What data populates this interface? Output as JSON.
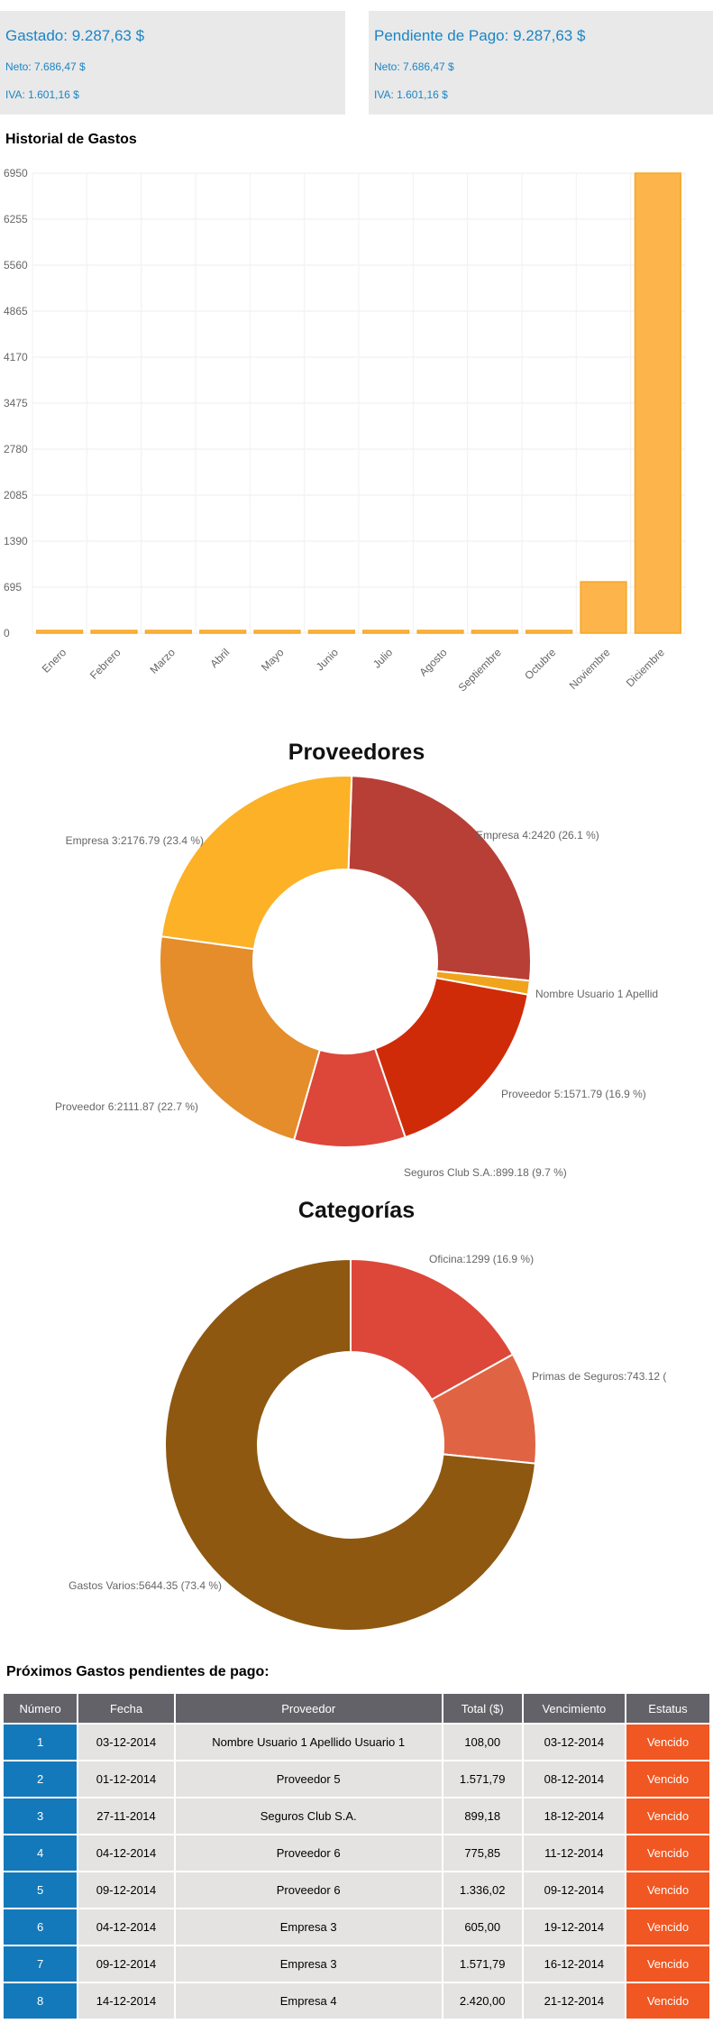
{
  "summary": {
    "spent": {
      "title": "Gastado: 9.287,63 $",
      "net": "Neto: 7.686,47 $",
      "vat": "IVA: 1.601,16 $"
    },
    "pending": {
      "title": "Pendiente de Pago: 9.287,63 $",
      "net": "Neto: 7.686,47 $",
      "vat": "IVA: 1.601,16 $"
    }
  },
  "history": {
    "title": "Historial de Gastos"
  },
  "colors": {
    "bar_fill": "#fdb54b",
    "bar_stroke": "#f5a623",
    "accent_blue": "#1479ba",
    "status_red": "#f05722"
  },
  "chart_data": [
    {
      "type": "bar",
      "title": "",
      "categories": [
        "Enero",
        "Febrero",
        "Marzo",
        "Abril",
        "Mayo",
        "Junio",
        "Julio",
        "Agosto",
        "Septiembre",
        "Octubre",
        "Noviembre",
        "Diciembre"
      ],
      "values": [
        0,
        0,
        0,
        0,
        0,
        0,
        0,
        0,
        0,
        0,
        775.85,
        6950
      ],
      "y_ticks": [
        "0",
        "695",
        "1390",
        "2085",
        "2780",
        "3475",
        "4170",
        "4865",
        "5560",
        "6255",
        "6950"
      ],
      "ylim": [
        0,
        6950
      ],
      "grid": true
    },
    {
      "type": "pie",
      "title": "Proveedores",
      "slices": [
        {
          "label": "Empresa 4:2420 (26.1 %)",
          "value": 26.1,
          "color": "#b83f35"
        },
        {
          "label": "Nombre Usuario 1  Apellid",
          "value": 1.2,
          "color": "#f0a41d"
        },
        {
          "label": "Proveedor 5:1571.79 (16.9 %)",
          "value": 16.9,
          "color": "#d02b09"
        },
        {
          "label": "Seguros Club S.A.:899.18 (9.7 %)",
          "value": 9.7,
          "color": "#dc4739"
        },
        {
          "label": "Proveedor 6:2111.87 (22.7 %)",
          "value": 22.7,
          "color": "#e48d2a"
        },
        {
          "label": "Empresa 3:2176.79 (23.4 %)",
          "value": 23.4,
          "color": "#fcb127"
        }
      ]
    },
    {
      "type": "pie",
      "title": "Categorías",
      "slices": [
        {
          "label": "Oficina:1299 (16.9 %)",
          "value": 16.9,
          "color": "#dc4739"
        },
        {
          "label": "Primas de Seguros:743.12 (",
          "value": 9.7,
          "color": "#e06444"
        },
        {
          "label": "Gastos Varios:5644.35 (73.4 %)",
          "value": 73.4,
          "color": "#8e5810"
        }
      ]
    }
  ],
  "pending_table": {
    "title": "Próximos Gastos pendientes de pago:",
    "columns": [
      "Número",
      "Fecha",
      "Proveedor",
      "Total ($)",
      "Vencimiento",
      "Estatus"
    ],
    "rows": [
      [
        "1",
        "03-12-2014",
        "Nombre Usuario 1 Apellido Usuario 1",
        "108,00",
        "03-12-2014",
        "Vencido"
      ],
      [
        "2",
        "01-12-2014",
        "Proveedor 5",
        "1.571,79",
        "08-12-2014",
        "Vencido"
      ],
      [
        "3",
        "27-11-2014",
        "Seguros Club S.A.",
        "899,18",
        "18-12-2014",
        "Vencido"
      ],
      [
        "4",
        "04-12-2014",
        "Proveedor 6",
        "775,85",
        "11-12-2014",
        "Vencido"
      ],
      [
        "5",
        "09-12-2014",
        "Proveedor 6",
        "1.336,02",
        "09-12-2014",
        "Vencido"
      ],
      [
        "6",
        "04-12-2014",
        "Empresa 3",
        "605,00",
        "19-12-2014",
        "Vencido"
      ],
      [
        "7",
        "09-12-2014",
        "Empresa 3",
        "1.571,79",
        "16-12-2014",
        "Vencido"
      ],
      [
        "8",
        "14-12-2014",
        "Empresa 4",
        "2.420,00",
        "21-12-2014",
        "Vencido"
      ]
    ]
  }
}
